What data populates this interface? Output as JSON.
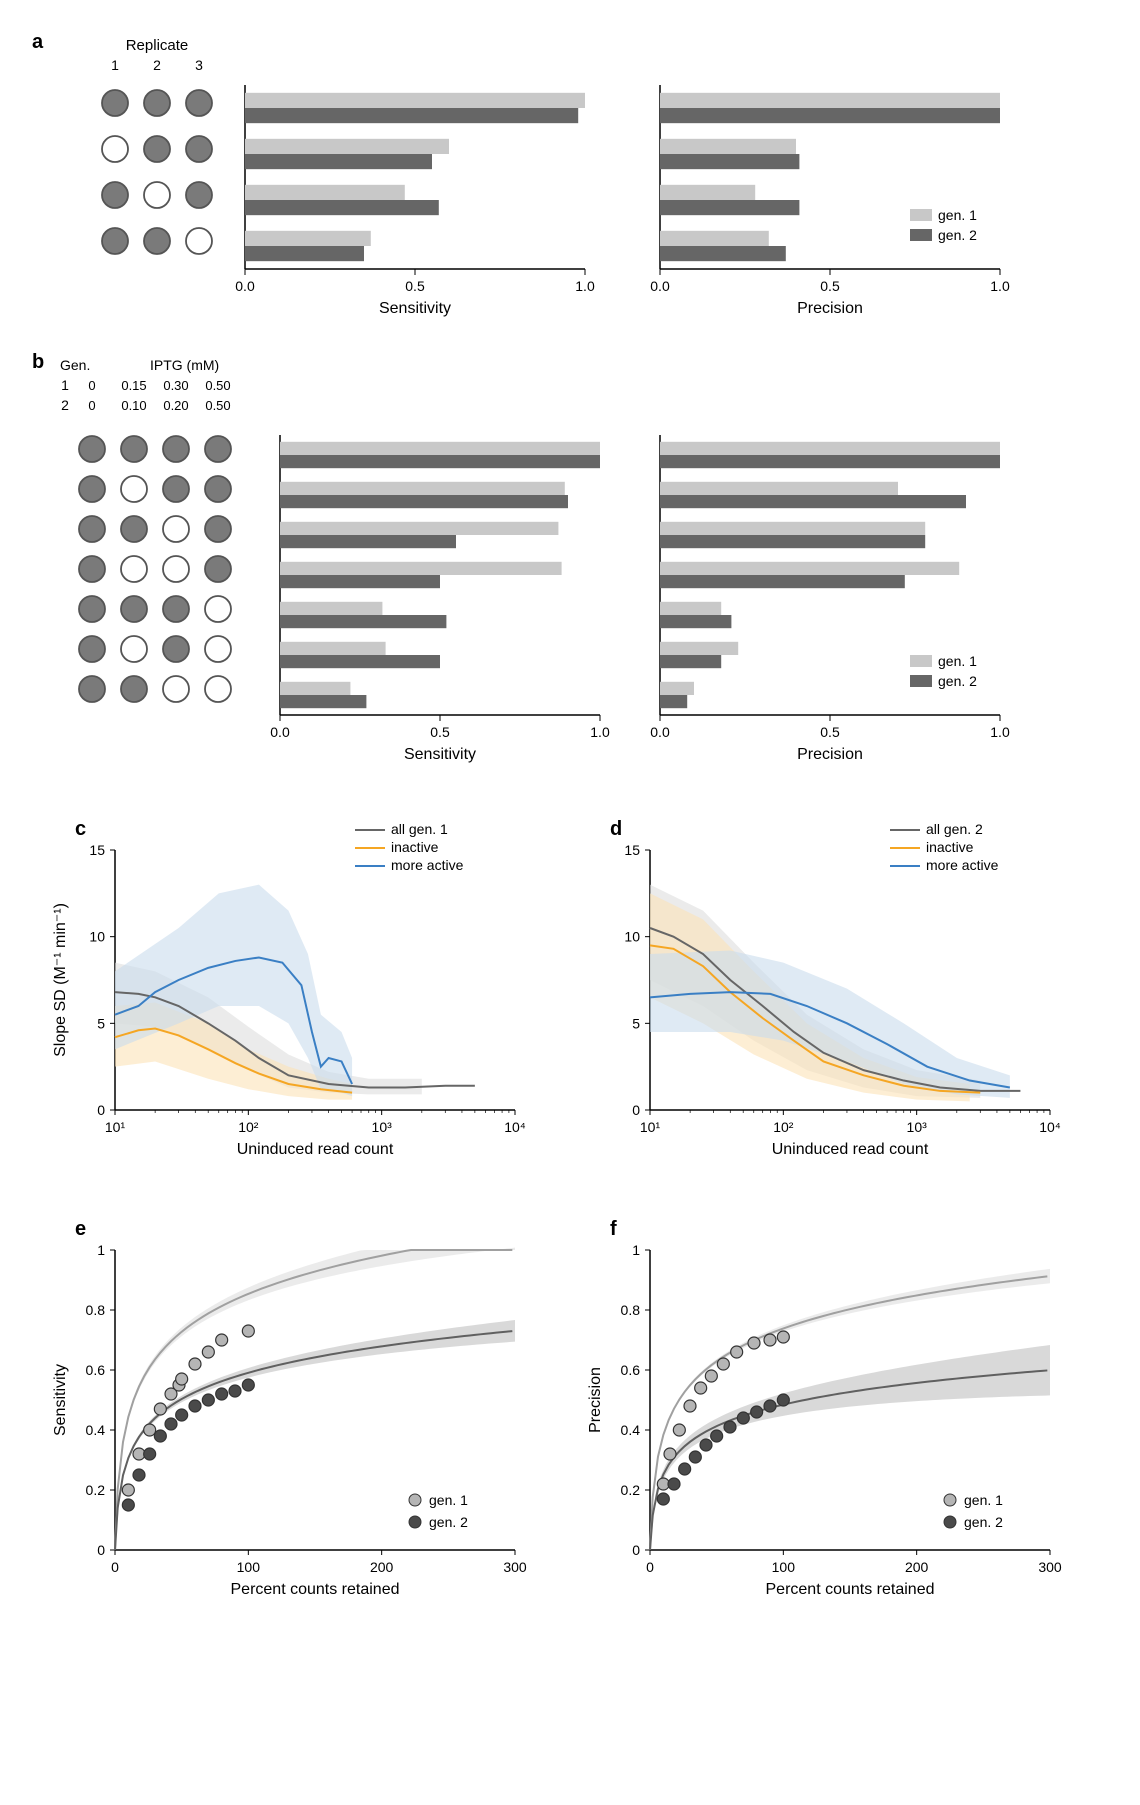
{
  "colors": {
    "gen1_light": "#c8c8c8",
    "gen2_dark": "#666666",
    "circle_fill": "#7a7a7a",
    "circle_empty": "#ffffff",
    "circle_stroke": "#555555",
    "axis": "#000000",
    "line_all": "#666666",
    "line_inactive": "#f5a623",
    "line_more_active": "#3a7fc4",
    "band_all": "#dddddd",
    "band_inactive": "#fbe3b8",
    "band_more_active": "#c9dced",
    "scatter_gen1_fill": "#b5b5b5",
    "scatter_gen2_fill": "#4a4a4a",
    "scatter_stroke": "#333333",
    "fit_gen1": "#a0a0a0",
    "fit_gen2": "#606060",
    "fit_gen1_band": "#e2e2e2",
    "fit_gen2_band": "#bfbfbf"
  },
  "panel_labels": {
    "a": "a",
    "b": "b",
    "c": "c",
    "d": "d",
    "e": "e",
    "f": "f"
  },
  "panel_a": {
    "replicate_header": [
      "Replicate",
      "1",
      "2",
      "3"
    ],
    "rows": [
      {
        "circles": [
          1,
          1,
          1
        ]
      },
      {
        "circles": [
          0,
          1,
          1
        ]
      },
      {
        "circles": [
          1,
          0,
          1
        ]
      },
      {
        "circles": [
          1,
          1,
          0
        ]
      }
    ],
    "sensitivity": {
      "gen1": [
        1.0,
        0.6,
        0.47,
        0.37
      ],
      "gen2": [
        0.98,
        0.55,
        0.57,
        0.35
      ],
      "xlabel": "Sensitivity",
      "xticks": [
        0.0,
        0.5,
        1.0
      ]
    },
    "precision": {
      "gen1": [
        1.0,
        0.4,
        0.28,
        0.32
      ],
      "gen2": [
        1.0,
        0.41,
        0.41,
        0.37
      ],
      "xlabel": "Precision",
      "xticks": [
        0.0,
        0.5,
        1.0
      ]
    },
    "legend": [
      "gen. 1",
      "gen. 2"
    ]
  },
  "panel_b": {
    "header_lines": [
      [
        "Gen.",
        "IPTG (mM)"
      ],
      [
        "1",
        "0",
        "0.15",
        "0.30",
        "0.50"
      ],
      [
        "2",
        "0",
        "0.10",
        "0.20",
        "0.50"
      ]
    ],
    "rows": [
      {
        "circles": [
          1,
          1,
          1,
          1
        ]
      },
      {
        "circles": [
          1,
          0,
          1,
          1
        ]
      },
      {
        "circles": [
          1,
          1,
          0,
          1
        ]
      },
      {
        "circles": [
          1,
          0,
          0,
          1
        ]
      },
      {
        "circles": [
          1,
          1,
          1,
          0
        ]
      },
      {
        "circles": [
          1,
          0,
          1,
          0
        ]
      },
      {
        "circles": [
          1,
          1,
          0,
          0
        ]
      }
    ],
    "sensitivity": {
      "gen1": [
        1.0,
        0.89,
        0.87,
        0.88,
        0.32,
        0.33,
        0.22
      ],
      "gen2": [
        1.0,
        0.9,
        0.55,
        0.5,
        0.52,
        0.5,
        0.27
      ],
      "xlabel": "Sensitivity",
      "xticks": [
        0.0,
        0.5,
        1.0
      ]
    },
    "precision": {
      "gen1": [
        1.0,
        0.7,
        0.78,
        0.88,
        0.18,
        0.23,
        0.1
      ],
      "gen2": [
        1.0,
        0.9,
        0.78,
        0.72,
        0.21,
        0.18,
        0.08
      ],
      "xlabel": "Precision",
      "xticks": [
        0.0,
        0.5,
        1.0
      ]
    },
    "legend": [
      "gen. 1",
      "gen. 2"
    ]
  },
  "panel_c": {
    "xlabel": "Uninduced read count",
    "ylabel": "Slope SD (M⁻¹ min⁻¹)",
    "legend": [
      "all gen. 1",
      "inactive",
      "more active"
    ],
    "xlog": true,
    "xlim": [
      10,
      10000
    ],
    "ylim": [
      0,
      15
    ],
    "yticks": [
      0,
      5,
      10,
      15
    ],
    "xticks": [
      10,
      100,
      1000,
      10000
    ],
    "xtick_labels": [
      "10¹",
      "10²",
      "10³",
      "10⁴"
    ],
    "series": {
      "all": {
        "color_key": "line_all",
        "band_key": "band_all",
        "pts": [
          [
            10,
            6.8
          ],
          [
            15,
            6.7
          ],
          [
            20,
            6.5
          ],
          [
            30,
            6.0
          ],
          [
            50,
            5.0
          ],
          [
            80,
            4.0
          ],
          [
            120,
            3.0
          ],
          [
            200,
            2.0
          ],
          [
            400,
            1.5
          ],
          [
            800,
            1.3
          ],
          [
            1500,
            1.3
          ],
          [
            3000,
            1.4
          ],
          [
            5000,
            1.4
          ]
        ],
        "band": [
          [
            10,
            5.0,
            8.5
          ],
          [
            20,
            4.8,
            8.0
          ],
          [
            50,
            3.5,
            6.5
          ],
          [
            100,
            2.3,
            4.8
          ],
          [
            200,
            1.3,
            3.2
          ],
          [
            400,
            1.0,
            2.2
          ],
          [
            800,
            0.9,
            1.8
          ],
          [
            2000,
            0.9,
            1.8
          ]
        ]
      },
      "inactive": {
        "color_key": "line_inactive",
        "band_key": "band_inactive",
        "pts": [
          [
            10,
            4.2
          ],
          [
            15,
            4.6
          ],
          [
            20,
            4.7
          ],
          [
            30,
            4.3
          ],
          [
            50,
            3.5
          ],
          [
            80,
            2.7
          ],
          [
            120,
            2.1
          ],
          [
            200,
            1.5
          ],
          [
            350,
            1.2
          ],
          [
            600,
            1.0
          ]
        ],
        "band": [
          [
            10,
            2.5,
            6.0
          ],
          [
            20,
            2.8,
            6.2
          ],
          [
            50,
            1.8,
            5.0
          ],
          [
            100,
            1.2,
            3.5
          ],
          [
            200,
            0.8,
            2.5
          ],
          [
            400,
            0.6,
            1.8
          ],
          [
            600,
            0.6,
            1.5
          ]
        ]
      },
      "more_active": {
        "color_key": "line_more_active",
        "band_key": "band_more_active",
        "pts": [
          [
            10,
            5.5
          ],
          [
            15,
            6.0
          ],
          [
            20,
            6.8
          ],
          [
            30,
            7.5
          ],
          [
            50,
            8.2
          ],
          [
            80,
            8.6
          ],
          [
            120,
            8.8
          ],
          [
            180,
            8.5
          ],
          [
            250,
            7.2
          ],
          [
            300,
            4.5
          ],
          [
            350,
            2.5
          ],
          [
            400,
            3.0
          ],
          [
            500,
            2.8
          ],
          [
            600,
            1.5
          ]
        ],
        "band": [
          [
            10,
            3.5,
            8.0
          ],
          [
            30,
            5.0,
            10.5
          ],
          [
            60,
            6.0,
            12.5
          ],
          [
            120,
            6.0,
            13.0
          ],
          [
            200,
            5.0,
            11.5
          ],
          [
            280,
            3.0,
            9.0
          ],
          [
            350,
            1.2,
            5.5
          ],
          [
            500,
            1.0,
            4.5
          ],
          [
            600,
            0.8,
            3.0
          ]
        ]
      }
    }
  },
  "panel_d": {
    "xlabel": "Uninduced read count",
    "legend": [
      "all gen. 2",
      "inactive",
      "more active"
    ],
    "xlog": true,
    "xlim": [
      10,
      10000
    ],
    "ylim": [
      0,
      15
    ],
    "yticks": [
      0,
      5,
      10,
      15
    ],
    "xticks": [
      10,
      100,
      1000,
      10000
    ],
    "xtick_labels": [
      "10¹",
      "10²",
      "10³",
      "10⁴"
    ],
    "series": {
      "all": {
        "color_key": "line_all",
        "band_key": "band_all",
        "pts": [
          [
            10,
            10.5
          ],
          [
            15,
            10.0
          ],
          [
            25,
            9.0
          ],
          [
            40,
            7.5
          ],
          [
            70,
            6.0
          ],
          [
            120,
            4.5
          ],
          [
            200,
            3.3
          ],
          [
            400,
            2.3
          ],
          [
            800,
            1.7
          ],
          [
            1500,
            1.3
          ],
          [
            3000,
            1.1
          ],
          [
            6000,
            1.1
          ]
        ],
        "band": [
          [
            10,
            7.5,
            13.0
          ],
          [
            25,
            6.0,
            11.5
          ],
          [
            60,
            4.0,
            8.5
          ],
          [
            150,
            2.3,
            5.5
          ],
          [
            400,
            1.3,
            3.5
          ],
          [
            1000,
            0.8,
            2.3
          ],
          [
            3000,
            0.7,
            1.7
          ]
        ]
      },
      "inactive": {
        "color_key": "line_inactive",
        "band_key": "band_inactive",
        "pts": [
          [
            10,
            9.5
          ],
          [
            15,
            9.3
          ],
          [
            25,
            8.3
          ],
          [
            40,
            6.8
          ],
          [
            70,
            5.3
          ],
          [
            120,
            4.0
          ],
          [
            200,
            2.8
          ],
          [
            400,
            2.0
          ],
          [
            800,
            1.4
          ],
          [
            1500,
            1.1
          ],
          [
            3000,
            1.0
          ]
        ],
        "band": [
          [
            10,
            6.5,
            12.5
          ],
          [
            25,
            5.0,
            11.0
          ],
          [
            60,
            3.2,
            8.0
          ],
          [
            150,
            1.8,
            5.0
          ],
          [
            400,
            1.0,
            3.0
          ],
          [
            1000,
            0.6,
            1.9
          ],
          [
            2500,
            0.5,
            1.5
          ]
        ]
      },
      "more_active": {
        "color_key": "line_more_active",
        "band_key": "band_more_active",
        "pts": [
          [
            10,
            6.5
          ],
          [
            20,
            6.7
          ],
          [
            40,
            6.8
          ],
          [
            80,
            6.7
          ],
          [
            150,
            6.0
          ],
          [
            300,
            5.0
          ],
          [
            600,
            3.8
          ],
          [
            1200,
            2.5
          ],
          [
            2500,
            1.7
          ],
          [
            5000,
            1.3
          ]
        ],
        "band": [
          [
            10,
            4.5,
            9.0
          ],
          [
            40,
            4.5,
            9.2
          ],
          [
            100,
            4.0,
            8.5
          ],
          [
            300,
            2.8,
            7.0
          ],
          [
            800,
            1.5,
            5.0
          ],
          [
            2000,
            0.9,
            3.0
          ],
          [
            5000,
            0.7,
            2.0
          ]
        ]
      }
    }
  },
  "panel_e": {
    "xlabel": "Percent counts retained",
    "ylabel": "Sensitivity",
    "xlim": [
      0,
      300
    ],
    "ylim": [
      0,
      1.0
    ],
    "xticks": [
      0,
      100,
      200,
      300
    ],
    "yticks": [
      0,
      0.2,
      0.4,
      0.6,
      0.8,
      1.0
    ],
    "legend": [
      "gen. 1",
      "gen. 2"
    ],
    "gen1_pts": [
      [
        10,
        0.2
      ],
      [
        18,
        0.32
      ],
      [
        26,
        0.4
      ],
      [
        34,
        0.47
      ],
      [
        42,
        0.52
      ],
      [
        48,
        0.55
      ],
      [
        50,
        0.57
      ],
      [
        60,
        0.62
      ],
      [
        70,
        0.66
      ],
      [
        80,
        0.7
      ],
      [
        100,
        0.73
      ]
    ],
    "gen2_pts": [
      [
        10,
        0.15
      ],
      [
        18,
        0.25
      ],
      [
        26,
        0.32
      ],
      [
        34,
        0.38
      ],
      [
        42,
        0.42
      ],
      [
        50,
        0.45
      ],
      [
        60,
        0.48
      ],
      [
        70,
        0.5
      ],
      [
        80,
        0.52
      ],
      [
        90,
        0.53
      ],
      [
        100,
        0.55
      ]
    ],
    "gen1_fit": {
      "a": 0.185,
      "band": 0.04
    },
    "gen2_fit": {
      "a": 0.128,
      "band": 0.03
    }
  },
  "panel_f": {
    "xlabel": "Percent counts retained",
    "ylabel": "Precision",
    "xlim": [
      0,
      300
    ],
    "ylim": [
      0,
      1.0
    ],
    "xticks": [
      0,
      100,
      200,
      300
    ],
    "yticks": [
      0,
      0.2,
      0.4,
      0.6,
      0.8,
      1.0
    ],
    "legend": [
      "gen. 1",
      "gen. 2"
    ],
    "gen1_pts": [
      [
        10,
        0.22
      ],
      [
        15,
        0.32
      ],
      [
        22,
        0.4
      ],
      [
        30,
        0.48
      ],
      [
        38,
        0.54
      ],
      [
        46,
        0.58
      ],
      [
        55,
        0.62
      ],
      [
        65,
        0.66
      ],
      [
        78,
        0.69
      ],
      [
        90,
        0.7
      ],
      [
        100,
        0.71
      ]
    ],
    "gen2_pts": [
      [
        10,
        0.17
      ],
      [
        18,
        0.22
      ],
      [
        26,
        0.27
      ],
      [
        34,
        0.31
      ],
      [
        42,
        0.35
      ],
      [
        50,
        0.38
      ],
      [
        60,
        0.41
      ],
      [
        70,
        0.44
      ],
      [
        80,
        0.46
      ],
      [
        90,
        0.48
      ],
      [
        100,
        0.5
      ]
    ],
    "gen1_fit": {
      "a": 0.16,
      "band": 0.02
    },
    "gen2_fit": {
      "a": 0.105,
      "band": 0.07
    }
  }
}
